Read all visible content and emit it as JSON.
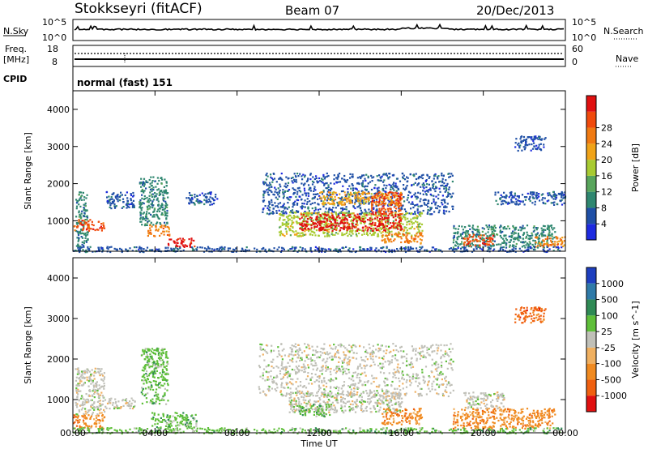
{
  "header": {
    "title": "Stokkseyri (fitACF)",
    "beam": "Beam 07",
    "date": "20/Dec/2013"
  },
  "sky_panel": {
    "left_label": "N.Sky",
    "right_label": "N.Search",
    "left_ticks": [
      "10^5",
      "10^0"
    ],
    "right_ticks": [
      "10^5",
      "10^0"
    ]
  },
  "freq_panel": {
    "left_label_1": "Freq.",
    "left_label_2": "[MHz]",
    "right_label": "Nave",
    "left_ticks": [
      "18",
      "8"
    ],
    "right_ticks": [
      "60",
      "0"
    ]
  },
  "cpid": {
    "label": "CPID",
    "value": "normal (fast) 151"
  },
  "axes": {
    "ylabel": "Slant Range [km]",
    "xlabel": "Time UT",
    "y_ticks": [
      "1000",
      "2000",
      "3000",
      "4000"
    ],
    "x_ticks": [
      "00:00",
      "04:00",
      "08:00",
      "12:00",
      "16:00",
      "20:00",
      "00:00"
    ]
  },
  "power_bar": {
    "label": "Power [dB]",
    "ticks": [
      "4",
      "8",
      "12",
      "16",
      "20",
      "24",
      "28"
    ],
    "colors": [
      "#1e2be0",
      "#1f4fa6",
      "#2f8770",
      "#58a55c",
      "#a8cb32",
      "#f0a318",
      "#f07a12",
      "#f04a0c",
      "#e01010"
    ]
  },
  "velocity_bar": {
    "label": "Velocity [m s^-1]",
    "ticks": [
      "1000",
      "500",
      "100",
      "25",
      "-25",
      "-100",
      "-500",
      "-1000"
    ],
    "colors": [
      "#1e3fbf",
      "#2f7aa8",
      "#2f8a55",
      "#5fbf3a",
      "#c0c0b8",
      "#f0b060",
      "#f08a20",
      "#f06010",
      "#e01010"
    ]
  },
  "chart_data": {
    "type": "heatmap",
    "x_units": "hours UT",
    "xlim": [
      0,
      24
    ],
    "ylim": [
      180,
      4500
    ],
    "power_blobs": [
      {
        "x0": 0.1,
        "x1": 0.7,
        "y0": 200,
        "y1": 1800,
        "level": 2
      },
      {
        "x0": 0.0,
        "x1": 1.5,
        "y0": 750,
        "y1": 1050,
        "level": 7
      },
      {
        "x0": 1.6,
        "x1": 3.0,
        "y0": 1350,
        "y1": 1800,
        "level": 1
      },
      {
        "x0": 3.2,
        "x1": 4.6,
        "y0": 900,
        "y1": 2200,
        "level": 2
      },
      {
        "x0": 3.6,
        "x1": 4.7,
        "y0": 600,
        "y1": 900,
        "level": 6
      },
      {
        "x0": 4.6,
        "x1": 6.0,
        "y0": 300,
        "y1": 550,
        "level": 8
      },
      {
        "x0": 5.5,
        "x1": 7.0,
        "y0": 1450,
        "y1": 1800,
        "level": 1
      },
      {
        "x0": 9.2,
        "x1": 18.5,
        "y0": 1200,
        "y1": 2300,
        "level": 1
      },
      {
        "x0": 10.0,
        "x1": 17.0,
        "y0": 600,
        "y1": 1250,
        "level": 4
      },
      {
        "x0": 11.0,
        "x1": 16.0,
        "y0": 750,
        "y1": 1200,
        "level": 8
      },
      {
        "x0": 12.0,
        "x1": 16.0,
        "y0": 1450,
        "y1": 1800,
        "level": 5
      },
      {
        "x0": 14.5,
        "x1": 16.0,
        "y0": 1200,
        "y1": 1800,
        "level": 7
      },
      {
        "x0": 15.0,
        "x1": 17.0,
        "y0": 400,
        "y1": 700,
        "level": 6
      },
      {
        "x0": 18.5,
        "x1": 23.5,
        "y0": 300,
        "y1": 900,
        "level": 2
      },
      {
        "x0": 19.0,
        "x1": 20.5,
        "y0": 350,
        "y1": 650,
        "level": 7
      },
      {
        "x0": 20.5,
        "x1": 24.0,
        "y0": 1450,
        "y1": 1800,
        "level": 1
      },
      {
        "x0": 21.5,
        "x1": 23.0,
        "y0": 2900,
        "y1": 3300,
        "level": 1
      },
      {
        "x0": 22.5,
        "x1": 24.0,
        "y0": 300,
        "y1": 600,
        "level": 6
      },
      {
        "x0": 0.0,
        "x1": 24.0,
        "y0": 180,
        "y1": 320,
        "level": 1
      }
    ],
    "velocity_blobs": [
      {
        "x0": 0.0,
        "x1": 1.5,
        "y0": 300,
        "y1": 650,
        "level": 6
      },
      {
        "x0": 0.1,
        "x1": 1.5,
        "y0": 650,
        "y1": 1800,
        "level": 4
      },
      {
        "x0": 1.5,
        "x1": 3.0,
        "y0": 800,
        "y1": 1050,
        "level": 4
      },
      {
        "x0": 3.3,
        "x1": 4.6,
        "y0": 900,
        "y1": 2300,
        "level": 3
      },
      {
        "x0": 3.8,
        "x1": 6.0,
        "y0": 300,
        "y1": 700,
        "level": 3
      },
      {
        "x0": 9.0,
        "x1": 18.5,
        "y0": 1100,
        "y1": 2400,
        "level": 4
      },
      {
        "x0": 10.5,
        "x1": 16.0,
        "y0": 700,
        "y1": 1200,
        "level": 4
      },
      {
        "x0": 11.0,
        "x1": 12.5,
        "y0": 600,
        "y1": 900,
        "level": 3
      },
      {
        "x0": 15.0,
        "x1": 17.0,
        "y0": 400,
        "y1": 800,
        "level": 6
      },
      {
        "x0": 18.5,
        "x1": 23.5,
        "y0": 300,
        "y1": 800,
        "level": 6
      },
      {
        "x0": 19.0,
        "x1": 21.0,
        "y0": 800,
        "y1": 1200,
        "level": 4
      },
      {
        "x0": 21.5,
        "x1": 23.0,
        "y0": 2900,
        "y1": 3300,
        "level": 7
      },
      {
        "x0": 0.0,
        "x1": 24.0,
        "y0": 180,
        "y1": 320,
        "level": 3
      }
    ]
  }
}
